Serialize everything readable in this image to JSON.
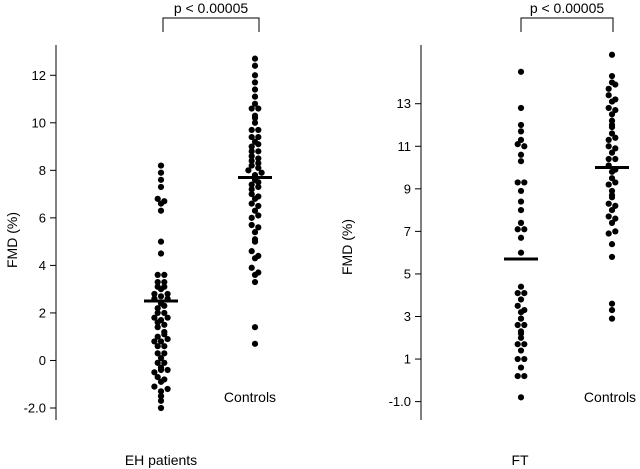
{
  "chart_data": [
    {
      "type": "scatter",
      "title": "",
      "xlabel": "",
      "ylabel": "FMD (%)",
      "ylim": [
        -2.0,
        13.4
      ],
      "yticks": [
        -2.0,
        0,
        2,
        4,
        6,
        8,
        10,
        12
      ],
      "ytick_labels": [
        "-2.0",
        "0",
        "2",
        "4",
        "6",
        "8",
        "10",
        "12"
      ],
      "grid": false,
      "significance": "p < 0.00005",
      "groups": [
        {
          "name": "EH patients",
          "mean": 2.5,
          "values": [
            8.2,
            7.9,
            7.6,
            7.3,
            6.8,
            6.6,
            6.3,
            6.7,
            5.0,
            4.5,
            3.6,
            3.3,
            3.1,
            2.8,
            2.6,
            2.4,
            2.2,
            2.0,
            1.8,
            1.6,
            1.4,
            1.2,
            1.0,
            0.8,
            0.6,
            0.3,
            0.1,
            -0.1,
            -0.3,
            -0.5,
            -0.7,
            -0.9,
            -1.1,
            -1.3,
            -1.5,
            -1.7,
            -2.0,
            3.6,
            3.3,
            3.0,
            2.7,
            2.6,
            2.3,
            2.0,
            1.7,
            1.5,
            1.1,
            0.8,
            0.6,
            0.3,
            -0.1,
            -0.4,
            -0.8,
            -1.2,
            3.1,
            2.8,
            1.8,
            0.9,
            -0.4
          ]
        },
        {
          "name": "Controls",
          "mean": 7.7,
          "values": [
            12.7,
            12.4,
            12.0,
            11.7,
            11.4,
            11.1,
            10.8,
            10.6,
            10.3,
            10.0,
            9.7,
            9.4,
            9.2,
            9.0,
            8.8,
            8.6,
            8.4,
            8.2,
            8.0,
            7.8,
            7.6,
            7.4,
            7.2,
            7.0,
            6.8,
            6.6,
            6.3,
            6.0,
            5.7,
            5.4,
            5.0,
            4.6,
            4.3,
            3.9,
            3.6,
            3.3,
            1.4,
            0.7,
            10.6,
            10.2,
            9.7,
            9.4,
            9.1,
            8.8,
            8.5,
            8.3,
            8.1,
            7.9,
            7.5,
            7.3,
            6.9,
            6.5,
            6.1,
            5.6,
            5.1,
            4.4,
            3.7
          ]
        }
      ]
    },
    {
      "type": "scatter",
      "title": "",
      "xlabel": "",
      "ylabel": "FMD (%)",
      "ylim": [
        -1.3,
        15.9
      ],
      "yticks": [
        -1.0,
        1,
        3,
        5,
        7,
        9,
        11,
        13
      ],
      "ytick_labels": [
        "-1.0",
        "1",
        "3",
        "5",
        "7",
        "9",
        "11",
        "13"
      ],
      "grid": false,
      "significance": "p < 0.00005",
      "groups": [
        {
          "name": "FT",
          "mean": 5.7,
          "values": [
            14.5,
            12.8,
            12.0,
            11.7,
            11.3,
            11.1,
            10.6,
            10.3,
            9.3,
            8.9,
            8.4,
            8.0,
            7.4,
            7.1,
            6.7,
            6.0,
            4.4,
            4.1,
            3.8,
            3.5,
            3.2,
            2.9,
            2.6,
            2.3,
            2.0,
            1.7,
            1.4,
            1.0,
            0.6,
            0.2,
            -0.8,
            11.0,
            9.3,
            7.1,
            4.1,
            3.3,
            2.6,
            2.2,
            1.7,
            1.0,
            0.2
          ]
        },
        {
          "name": "Controls",
          "mean": 10.0,
          "values": [
            15.3,
            14.3,
            14.0,
            13.7,
            13.4,
            13.1,
            12.8,
            12.5,
            12.2,
            11.9,
            11.6,
            11.3,
            11.0,
            10.7,
            10.4,
            10.1,
            9.8,
            9.5,
            9.2,
            8.9,
            8.6,
            8.3,
            8.0,
            7.7,
            7.4,
            6.9,
            6.4,
            5.8,
            3.6,
            2.9,
            13.9,
            13.2,
            12.7,
            12.0,
            11.4,
            10.9,
            10.4,
            9.9,
            9.3,
            8.7,
            8.2,
            7.6,
            7.0,
            3.3
          ]
        }
      ]
    }
  ]
}
